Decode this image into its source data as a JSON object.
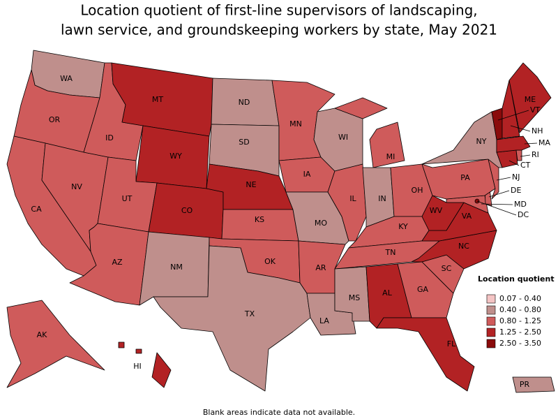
{
  "title": [
    "Location quotient of first-line supervisors of landscaping,",
    "lawn service, and groundskeeping workers by state, May 2021"
  ],
  "legend": {
    "title": "Location quotient",
    "classes": [
      {
        "label": "0.07 - 0.40",
        "color": "#f4c4c4"
      },
      {
        "label": "0.40 - 0.80",
        "color": "#bf8f8c"
      },
      {
        "label": "0.80 - 1.25",
        "color": "#cf5b5b"
      },
      {
        "label": "1.25 - 2.50",
        "color": "#b22224"
      },
      {
        "label": "2.50 - 3.50",
        "color": "#8a0b0b"
      }
    ]
  },
  "states": [
    {
      "label": "WA",
      "class": 1
    },
    {
      "label": "OR",
      "class": 2
    },
    {
      "label": "CA",
      "class": 2
    },
    {
      "label": "NV",
      "class": 2
    },
    {
      "label": "ID",
      "class": 2
    },
    {
      "label": "MT",
      "class": 3
    },
    {
      "label": "WY",
      "class": 3
    },
    {
      "label": "UT",
      "class": 2
    },
    {
      "label": "AZ",
      "class": 2
    },
    {
      "label": "CO",
      "class": 3
    },
    {
      "label": "NM",
      "class": 1
    },
    {
      "label": "ND",
      "class": 1
    },
    {
      "label": "SD",
      "class": 1
    },
    {
      "label": "NE",
      "class": 3
    },
    {
      "label": "KS",
      "class": 2
    },
    {
      "label": "OK",
      "class": 2
    },
    {
      "label": "TX",
      "class": 1
    },
    {
      "label": "MN",
      "class": 2
    },
    {
      "label": "IA",
      "class": 2
    },
    {
      "label": "MO",
      "class": 1
    },
    {
      "label": "AR",
      "class": 2
    },
    {
      "label": "LA",
      "class": 1
    },
    {
      "label": "WI",
      "class": 1
    },
    {
      "label": "IL",
      "class": 2
    },
    {
      "label": "MI",
      "class": 2
    },
    {
      "label": "IN",
      "class": 1
    },
    {
      "label": "OH",
      "class": 2
    },
    {
      "label": "KY",
      "class": 2
    },
    {
      "label": "TN",
      "class": 2
    },
    {
      "label": "MS",
      "class": 1
    },
    {
      "label": "AL",
      "class": 3
    },
    {
      "label": "GA",
      "class": 2
    },
    {
      "label": "FL",
      "class": 3
    },
    {
      "label": "SC",
      "class": 2
    },
    {
      "label": "NC",
      "class": 3
    },
    {
      "label": "VA",
      "class": 3
    },
    {
      "label": "WV",
      "class": 3
    },
    {
      "label": "MD",
      "class": 2
    },
    {
      "label": "DE",
      "class": 2
    },
    {
      "label": "DC",
      "class": 4
    },
    {
      "label": "PA",
      "class": 2
    },
    {
      "label": "NJ",
      "class": 2
    },
    {
      "label": "NY",
      "class": 1
    },
    {
      "label": "CT",
      "class": 3
    },
    {
      "label": "RI",
      "class": 2
    },
    {
      "label": "MA",
      "class": 3
    },
    {
      "label": "VT",
      "class": 4
    },
    {
      "label": "NH",
      "class": 3
    },
    {
      "label": "ME",
      "class": 3
    },
    {
      "label": "AK",
      "class": 2
    },
    {
      "label": "HI",
      "class": 3
    },
    {
      "label": "PR",
      "class": 1
    }
  ],
  "note": "Blank areas indicate data not available."
}
